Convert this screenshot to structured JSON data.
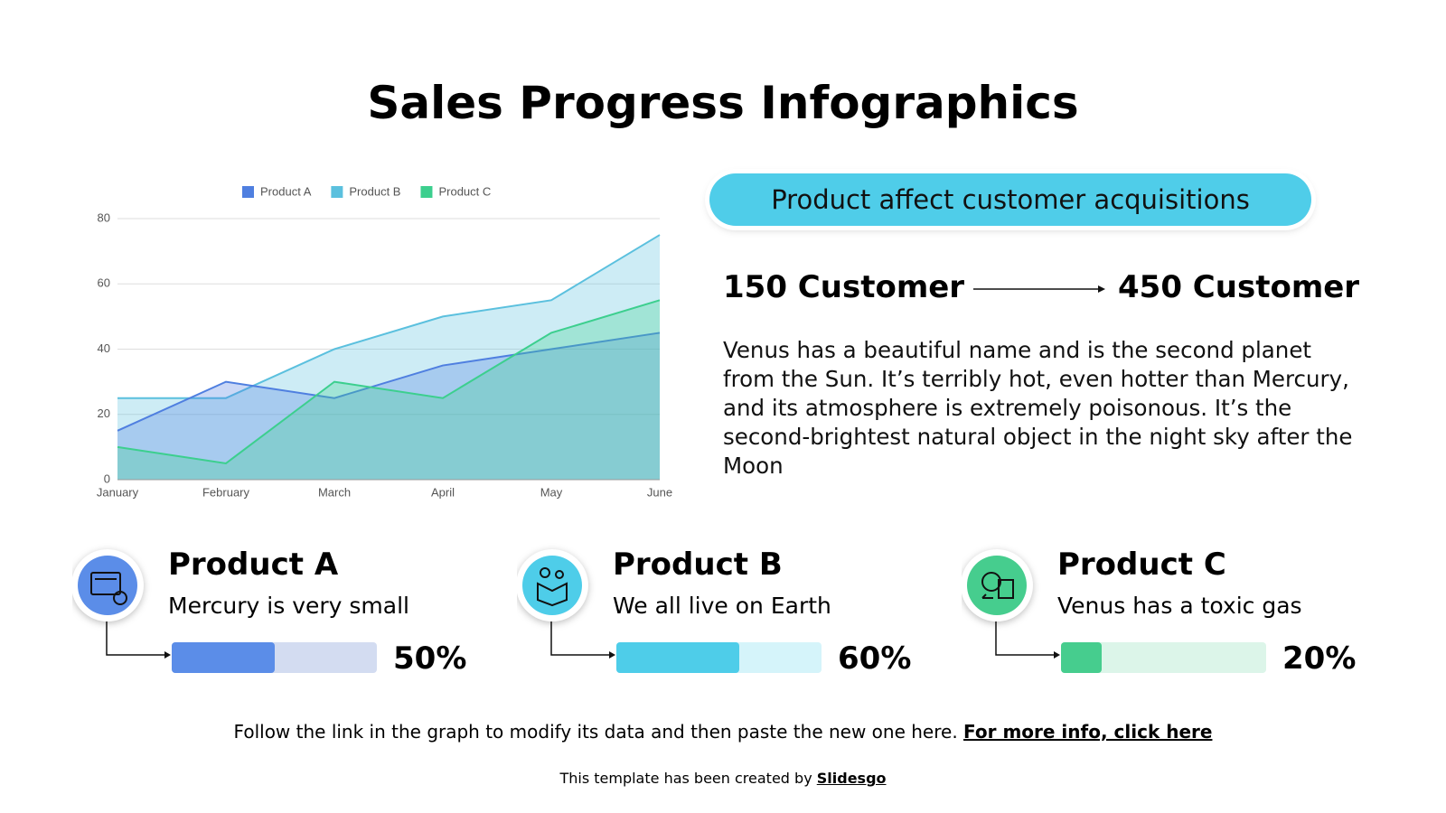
{
  "title": "Sales Progress Infographics",
  "chart_data": {
    "type": "area",
    "categories": [
      "January",
      "February",
      "March",
      "April",
      "May",
      "June"
    ],
    "series": [
      {
        "name": "Product A",
        "color": "#4f7fe0",
        "values": [
          15,
          30,
          25,
          35,
          40,
          45
        ]
      },
      {
        "name": "Product B",
        "color": "#5bc0de",
        "values": [
          25,
          25,
          40,
          50,
          55,
          75
        ]
      },
      {
        "name": "Product C",
        "color": "#3ccf8e",
        "values": [
          10,
          5,
          30,
          25,
          45,
          55
        ]
      }
    ],
    "ylim": [
      0,
      80
    ],
    "yticks": [
      0,
      20,
      40,
      60,
      80
    ],
    "grid": true,
    "legend": "top"
  },
  "callout": "Product affect customer acquisitions",
  "customers": {
    "from": "150 Customer",
    "to": "450 Customer"
  },
  "description": "Venus has a beautiful name and is the second planet from the Sun. It’s terribly hot, even hotter than Mercury, and its atmosphere is extremely poisonous. It’s the second-brightest natural object in the night sky after the Moon",
  "progress": {
    "names": [
      "Product A",
      "Product B",
      "Product C"
    ],
    "descriptions": [
      "Mercury is very small",
      "We all live on Earth",
      "Venus has a toxic gas"
    ],
    "values": [
      50,
      60,
      20
    ],
    "value_labels": [
      "50%",
      "60%",
      "20%"
    ],
    "max": 100,
    "colors": [
      "#5b8de8",
      "#4ecde9",
      "#46cd8e"
    ],
    "track_colors": [
      "#d3dcf1",
      "#d5f4fa",
      "#dcf5e9"
    ]
  },
  "footer": {
    "text": "Follow the link in the graph to modify its data and then paste the new one here.",
    "link": "For more info, click here",
    "credit": "This template has been created by",
    "credit_link": "Slidesgo"
  }
}
